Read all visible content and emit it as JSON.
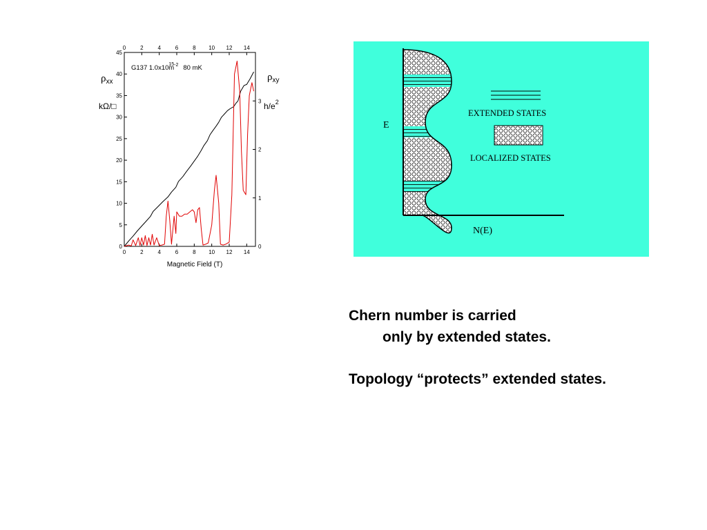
{
  "colors": {
    "panel_background": "#40ffdc",
    "rho_xx_curve": "#e00000",
    "rho_xy_curve": "#000000"
  },
  "qhe_plot": {
    "sample_label": "G137  1.0x10",
    "density_exponent": "15",
    "density_unit": "m",
    "density_unit_exponent": "-2",
    "temperature": "80 mK",
    "left_axis_symbol": "ρ",
    "left_axis_subscript": "xx",
    "left_axis_unit": "kΩ/□",
    "right_axis_symbol": "ρ",
    "right_axis_subscript": "xy",
    "right_axis_unit": "h/e",
    "right_axis_unit_exponent": "2",
    "x_axis_label": "Magnetic Field  (T)"
  },
  "chart_data": {
    "type": "line",
    "title": "",
    "xlabel": "Magnetic Field  (T)",
    "ylabel": "ρxx  kΩ/□",
    "y2label": "ρxy  h/e2",
    "xlim": [
      0,
      15
    ],
    "ylim": [
      0,
      45
    ],
    "y2lim": [
      0,
      4
    ],
    "x_ticks_bottom": [
      "0",
      "2",
      "4",
      "6",
      "8",
      "10",
      "12",
      "14"
    ],
    "x_ticks_top": [
      "0",
      "2",
      "4",
      "6",
      "8",
      "10",
      "12",
      "14"
    ],
    "y_ticks_left": [
      "0",
      "5",
      "10",
      "15",
      "20",
      "25",
      "30",
      "35",
      "40",
      "45"
    ],
    "y_ticks_right": [
      "0",
      "1",
      "2",
      "3"
    ],
    "series": [
      {
        "name": "ρxy",
        "axis": "right",
        "x": [
          0,
          0.5,
          1.0,
          1.5,
          2.0,
          2.5,
          3.0,
          3.3,
          3.8,
          4.4,
          5.0,
          5.4,
          5.9,
          6.2,
          6.7,
          7.1,
          7.6,
          8.0,
          8.4,
          8.8,
          9.1,
          9.5,
          9.8,
          10.1,
          10.5,
          10.8,
          11.1,
          11.5,
          11.8,
          12.1,
          12.5,
          12.8,
          13.0,
          13.3,
          13.7,
          14.0,
          14.4,
          14.8
        ],
        "values": [
          0,
          0.11,
          0.21,
          0.32,
          0.42,
          0.52,
          0.62,
          0.72,
          0.81,
          0.92,
          1.02,
          1.12,
          1.22,
          1.34,
          1.44,
          1.54,
          1.66,
          1.76,
          1.86,
          1.98,
          2.08,
          2.18,
          2.3,
          2.38,
          2.48,
          2.56,
          2.66,
          2.74,
          2.8,
          2.84,
          2.88,
          2.96,
          3.0,
          3.2,
          3.32,
          3.34,
          3.46,
          3.6
        ]
      },
      {
        "name": "ρxx",
        "axis": "left",
        "x": [
          0,
          0.5,
          0.8,
          1.0,
          1.3,
          1.6,
          1.8,
          2.0,
          2.2,
          2.4,
          2.6,
          2.8,
          3.0,
          3.2,
          3.4,
          3.7,
          4.0,
          4.3,
          4.6,
          4.8,
          5.0,
          5.2,
          5.4,
          5.7,
          5.9,
          6.0,
          6.3,
          6.6,
          6.9,
          7.2,
          7.5,
          7.8,
          8.0,
          8.2,
          8.4,
          8.6,
          8.8,
          9.0,
          9.3,
          9.6,
          10.0,
          10.3,
          10.5,
          10.8,
          11.0,
          11.3,
          11.6,
          12.0,
          12.3,
          12.6,
          12.9,
          13.2,
          13.4,
          13.6,
          13.9,
          14.1,
          14.3,
          14.6,
          14.8
        ],
        "values": [
          0,
          0.3,
          0.1,
          1.5,
          0.2,
          2.0,
          0.2,
          2.0,
          0.3,
          2.5,
          0.2,
          2.0,
          0.3,
          2.8,
          0.3,
          2.0,
          0.2,
          0.3,
          0.5,
          7.0,
          10.5,
          6.0,
          0.5,
          7.0,
          3.0,
          8.0,
          7.0,
          7.0,
          7.5,
          7.5,
          8.0,
          8.5,
          8.0,
          5.5,
          8.5,
          9.0,
          4.0,
          0.3,
          0.5,
          0.8,
          5.0,
          13.0,
          16.5,
          10.0,
          0.5,
          0.3,
          0.5,
          1.0,
          12.0,
          40.0,
          43.0,
          36.0,
          22.0,
          13.0,
          12.0,
          26.0,
          35.0,
          38.0,
          36.0
        ]
      }
    ]
  },
  "dos_diagram": {
    "energy_axis_label": "E",
    "dos_axis_label": "N(E)",
    "legend_extended": "EXTENDED STATES",
    "legend_localized": "LOCALIZED STATES"
  },
  "slide_text": {
    "line1": "Chern number is carried",
    "line2": "only by extended states.",
    "line3": "Topology “protects” extended states."
  }
}
